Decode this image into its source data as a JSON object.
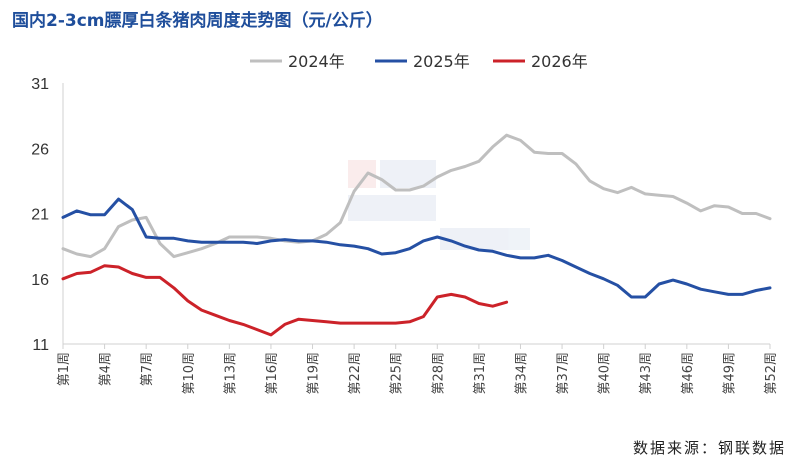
{
  "title": "国内2-3cm膘厚白条猪肉周度走势图（元/公斤）",
  "source": "数据来源：钢联数据",
  "chart_data": {
    "type": "line",
    "title": "国内2-3cm膘厚白条猪肉周度走势图（元/公斤）",
    "xlabel": "",
    "ylabel": "",
    "ylim": [
      11,
      31
    ],
    "yticks": [
      11,
      16,
      21,
      26,
      31
    ],
    "xlim": [
      1,
      52
    ],
    "xtick_weeks": [
      1,
      4,
      7,
      10,
      13,
      16,
      19,
      22,
      25,
      28,
      31,
      34,
      37,
      40,
      43,
      46,
      49,
      52
    ],
    "xtick_labels": [
      "第1周",
      "第4周",
      "第7周",
      "第10周",
      "第13周",
      "第16周",
      "第19周",
      "第22周",
      "第25周",
      "第28周",
      "第31周",
      "第34周",
      "第37周",
      "第40周",
      "第43周",
      "第46周",
      "第49周",
      "第52周"
    ],
    "grid": false,
    "legend_position": "top",
    "series": [
      {
        "name": "2024年",
        "color": "#bfbfbf",
        "x": [
          1,
          2,
          3,
          4,
          5,
          6,
          7,
          8,
          9,
          10,
          11,
          12,
          13,
          14,
          15,
          16,
          17,
          18,
          19,
          20,
          21,
          22,
          23,
          24,
          25,
          26,
          27,
          28,
          29,
          30,
          31,
          32,
          33,
          34,
          35,
          36,
          37,
          38,
          39,
          40,
          41,
          42,
          43,
          44,
          45,
          46,
          47,
          48,
          49,
          50,
          51,
          52
        ],
        "values": [
          18.3,
          17.9,
          17.7,
          18.3,
          20.0,
          20.5,
          20.7,
          18.7,
          17.7,
          18.0,
          18.3,
          18.7,
          19.2,
          19.2,
          19.2,
          19.1,
          18.9,
          18.8,
          18.9,
          19.4,
          20.3,
          22.7,
          24.1,
          23.6,
          22.8,
          22.8,
          23.1,
          23.8,
          24.3,
          24.6,
          25.0,
          26.1,
          27.0,
          26.6,
          25.7,
          25.6,
          25.6,
          24.8,
          23.5,
          22.9,
          22.6,
          23.0,
          22.5,
          22.4,
          22.3,
          21.8,
          21.2,
          21.6,
          21.5,
          21.0,
          21.0,
          20.6
        ]
      },
      {
        "name": "2025年",
        "color": "#2550a4",
        "x": [
          1,
          2,
          3,
          4,
          5,
          6,
          7,
          8,
          9,
          10,
          11,
          12,
          13,
          14,
          15,
          16,
          17,
          18,
          19,
          20,
          21,
          22,
          23,
          24,
          25,
          26,
          27,
          28,
          29,
          30,
          31,
          32,
          33,
          34,
          35,
          36,
          37,
          38,
          39,
          40,
          41,
          42,
          43,
          44,
          45,
          46,
          47,
          48,
          49,
          50,
          51,
          52
        ],
        "values": [
          20.7,
          21.2,
          20.9,
          20.9,
          22.1,
          21.3,
          19.2,
          19.1,
          19.1,
          18.9,
          18.8,
          18.8,
          18.8,
          18.8,
          18.7,
          18.9,
          19.0,
          18.9,
          18.9,
          18.8,
          18.6,
          18.5,
          18.3,
          17.9,
          18.0,
          18.3,
          18.9,
          19.2,
          18.9,
          18.5,
          18.2,
          18.1,
          17.8,
          17.6,
          17.6,
          17.8,
          17.4,
          16.9,
          16.4,
          16.0,
          15.5,
          14.6,
          14.6,
          15.6,
          15.9,
          15.6,
          15.2,
          15.0,
          14.8,
          14.8,
          15.1,
          15.3
        ]
      },
      {
        "name": "2026年",
        "color": "#cc2229",
        "x": [
          1,
          2,
          3,
          4,
          5,
          6,
          7,
          8,
          9,
          10,
          11,
          12,
          13,
          14,
          15,
          16,
          17,
          18,
          19,
          20,
          21,
          22,
          23,
          24,
          25,
          26,
          27,
          28,
          29,
          30,
          31,
          32,
          33
        ],
        "values": [
          16.0,
          16.4,
          16.5,
          17.0,
          16.9,
          16.4,
          16.1,
          16.1,
          15.3,
          14.3,
          13.6,
          13.2,
          12.8,
          12.5,
          12.1,
          11.7,
          12.5,
          12.9,
          12.8,
          12.7,
          12.6,
          12.6,
          12.6,
          12.6,
          12.6,
          12.7,
          13.1,
          14.6,
          14.8,
          14.6,
          14.1,
          13.9,
          14.2
        ]
      }
    ]
  }
}
